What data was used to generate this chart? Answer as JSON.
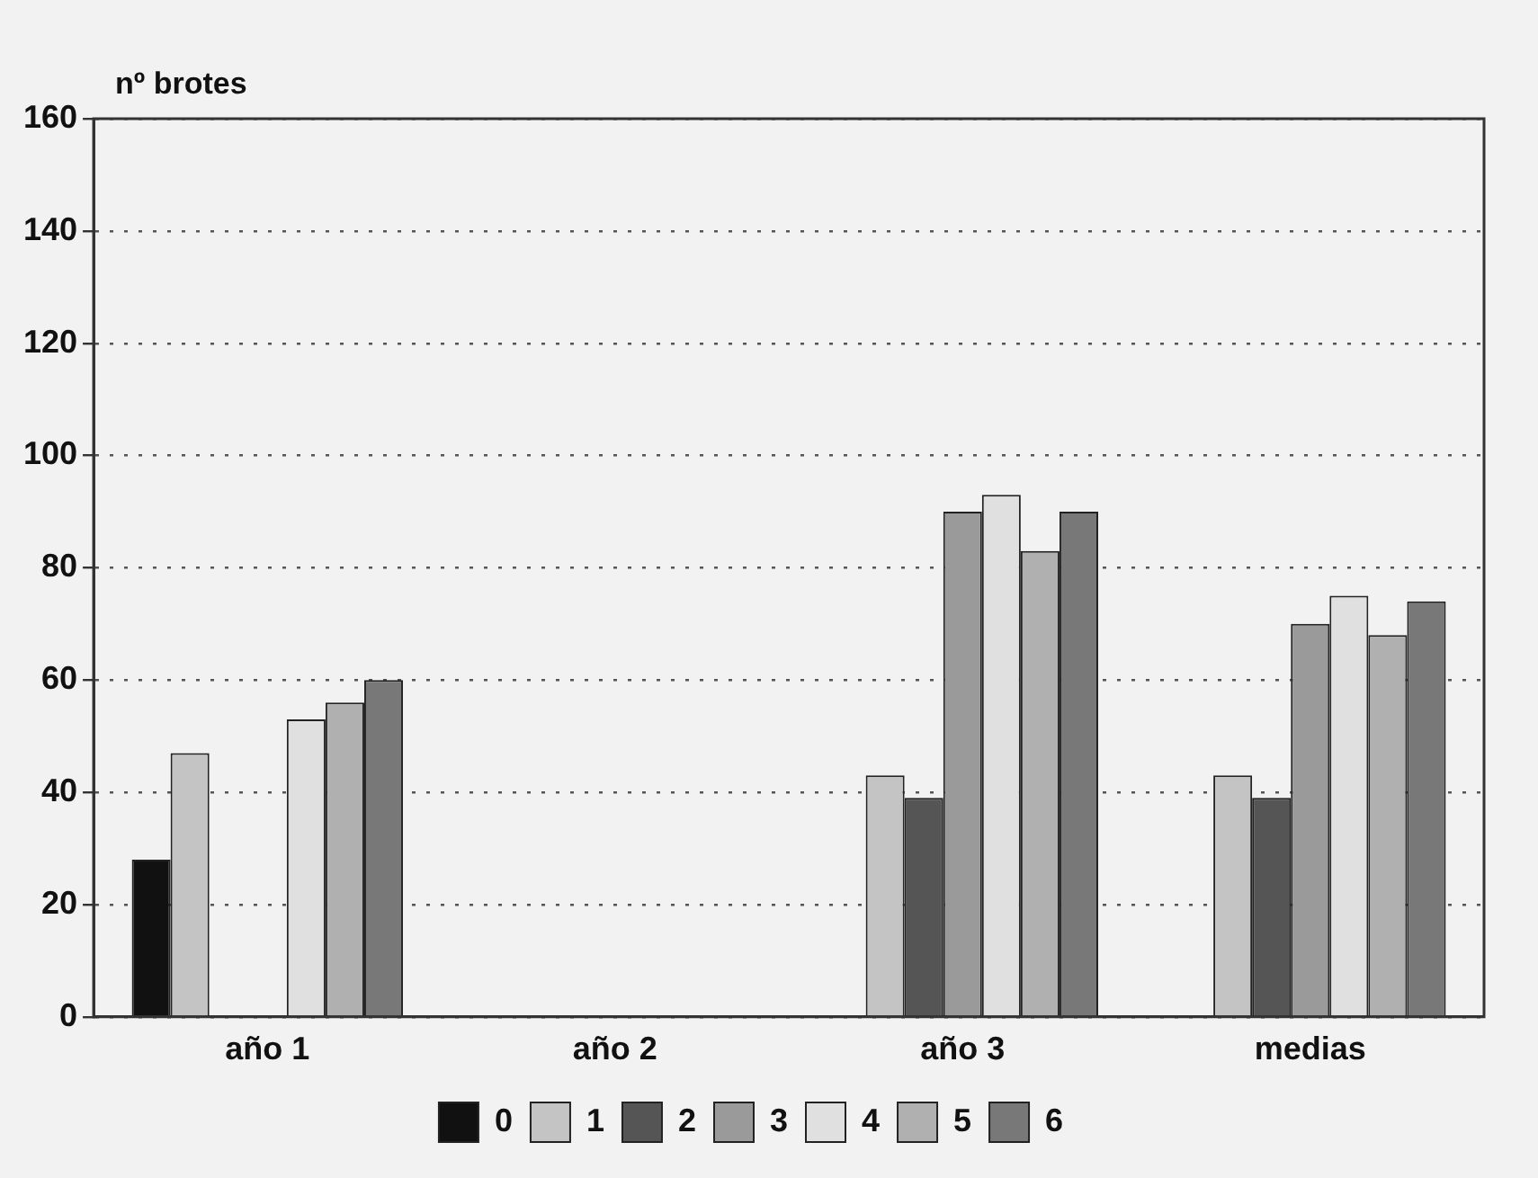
{
  "chart_data": {
    "type": "bar",
    "ylabel": "nº brotes",
    "categories": [
      "año 1",
      "año 2",
      "año 3",
      "medias"
    ],
    "series": [
      {
        "name": "0",
        "color": "#111111",
        "values": [
          28,
          null,
          null,
          null
        ]
      },
      {
        "name": "1",
        "color": "#c4c4c4",
        "values": [
          47,
          null,
          43,
          43
        ]
      },
      {
        "name": "2",
        "color": "#555555",
        "values": [
          null,
          null,
          39,
          39
        ]
      },
      {
        "name": "3",
        "color": "#9a9a9a",
        "values": [
          null,
          null,
          90,
          70
        ]
      },
      {
        "name": "4",
        "color": "#e0e0e0",
        "values": [
          53,
          null,
          93,
          75
        ]
      },
      {
        "name": "5",
        "color": "#b0b0b0",
        "values": [
          56,
          null,
          83,
          68
        ]
      },
      {
        "name": "6",
        "color": "#787878",
        "values": [
          60,
          null,
          90,
          74
        ]
      }
    ],
    "ylim": [
      0,
      160
    ],
    "yticks": [
      0,
      20,
      40,
      60,
      80,
      100,
      120,
      140,
      160
    ],
    "grid": "y",
    "legend": "bottom"
  }
}
